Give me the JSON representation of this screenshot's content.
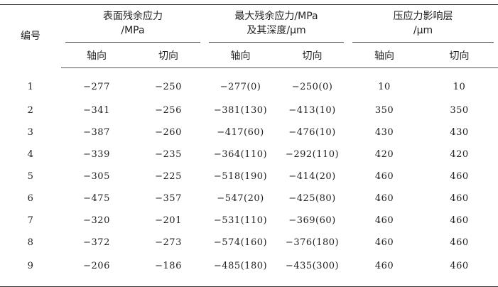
{
  "headers": {
    "id": "编号",
    "surface": {
      "line1": "表面残余应力",
      "line2": "/MPa"
    },
    "max": {
      "line1": "最大残余应力/MPa",
      "line2": "及其深度/μm"
    },
    "layer": {
      "line1": "压应力影响层",
      "line2": "/μm"
    },
    "axial": "轴向",
    "tangential": "切向"
  },
  "rows": [
    {
      "id": "1",
      "s_ax": "−277",
      "s_tan": "−250",
      "m_ax": "−277(0)",
      "m_tan": "−250(0)",
      "l_ax": "10",
      "l_tan": "10"
    },
    {
      "id": "2",
      "s_ax": "−341",
      "s_tan": "−256",
      "m_ax": "−381(130)",
      "m_tan": "−413(10)",
      "l_ax": "350",
      "l_tan": "350"
    },
    {
      "id": "3",
      "s_ax": "−387",
      "s_tan": "−260",
      "m_ax": "−417(60)",
      "m_tan": "−476(10)",
      "l_ax": "430",
      "l_tan": "430"
    },
    {
      "id": "4",
      "s_ax": "−339",
      "s_tan": "−235",
      "m_ax": "−364(110)",
      "m_tan": "−292(110)",
      "l_ax": "420",
      "l_tan": "420"
    },
    {
      "id": "5",
      "s_ax": "−305",
      "s_tan": "−225",
      "m_ax": "−518(190)",
      "m_tan": "−414(20)",
      "l_ax": "460",
      "l_tan": "460"
    },
    {
      "id": "6",
      "s_ax": "−475",
      "s_tan": "−357",
      "m_ax": "−547(20)",
      "m_tan": "−425(80)",
      "l_ax": "460",
      "l_tan": "460"
    },
    {
      "id": "7",
      "s_ax": "−320",
      "s_tan": "−201",
      "m_ax": "−531(110)",
      "m_tan": "−369(60)",
      "l_ax": "460",
      "l_tan": "460"
    },
    {
      "id": "8",
      "s_ax": "−372",
      "s_tan": "−273",
      "m_ax": "−574(160)",
      "m_tan": "−376(180)",
      "l_ax": "460",
      "l_tan": "460"
    },
    {
      "id": "9",
      "s_ax": "−206",
      "s_tan": "−186",
      "m_ax": "−485(180)",
      "m_tan": "−435(300)",
      "l_ax": "460",
      "l_tan": "460"
    }
  ]
}
